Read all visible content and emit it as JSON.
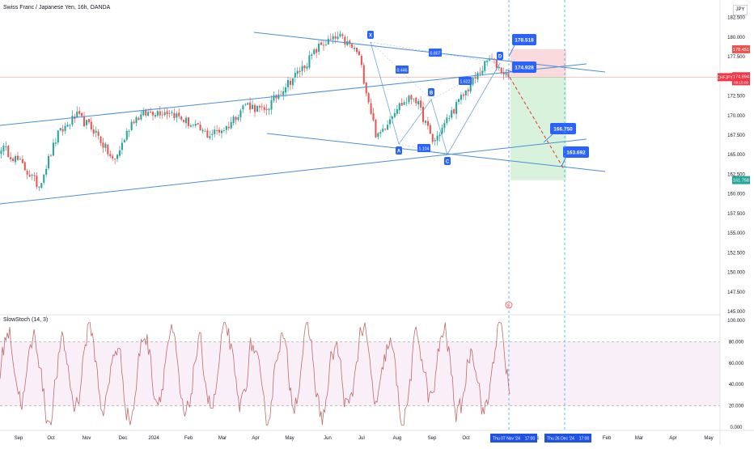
{
  "header": {
    "title": "Swiss Franc / Japanese Yen, 16h, OANDA",
    "currency": "JPY"
  },
  "colors": {
    "up": "#26a69a",
    "down": "#ef5350",
    "trendline": "#2962ff",
    "channel": "#4a8fd8",
    "label_bg": "#2962ff",
    "stoch": "#c26a6a",
    "stoch_band": "#f3e5f5",
    "target_zone": "#d1f0d6",
    "stop_zone": "#f9cdd2",
    "price_line": "#f44336"
  },
  "chart_data": [
    {
      "type": "candlestick",
      "title": "Swiss Franc / Japanese Yen, 16h, OANDA",
      "ylim": [
        145.0,
        183.5
      ],
      "y_ticks": [
        "182.500",
        "180.000",
        "177.500",
        "175.000",
        "172.500",
        "170.000",
        "167.500",
        "165.000",
        "162.500",
        "160.000",
        "157.500",
        "155.000",
        "152.500",
        "150.000",
        "147.500",
        "145.000"
      ],
      "x_ticks": [
        "Sep",
        "Oct",
        "Nov",
        "Dec",
        "2024",
        "Feb",
        "Mar",
        "Apr",
        "May",
        "Jun",
        "Jul",
        "Aug",
        "Sep",
        "Oct",
        "Dec",
        "Feb",
        "Mar",
        "Apr",
        "May"
      ],
      "close_path": [
        [
          "Sep",
          166.0
        ],
        [
          "Oct",
          164.0
        ],
        [
          "Oct",
          161.0
        ],
        [
          "Nov",
          167.5
        ],
        [
          "Nov",
          170.0
        ],
        [
          "Dec",
          168.0
        ],
        [
          "Dec",
          164.0
        ],
        [
          "2024",
          169.5
        ],
        [
          "Feb",
          170.5
        ],
        [
          "Feb",
          170.5
        ],
        [
          "Mar",
          169.0
        ],
        [
          "Apr",
          167.5
        ],
        [
          "Apr",
          168.5
        ],
        [
          "May",
          171.5
        ],
        [
          "May",
          170.5
        ],
        [
          "Jun",
          173.5
        ],
        [
          "Jun",
          176.0
        ],
        [
          "Jul",
          179.0
        ],
        [
          "Jul",
          180.0
        ],
        [
          "Jul",
          178.0
        ],
        [
          "Aug",
          167.0
        ],
        [
          "Aug",
          171.0
        ],
        [
          "Sep",
          172.5
        ],
        [
          "Sep",
          166.5
        ],
        [
          "Oct",
          170.5
        ],
        [
          "Oct",
          174.0
        ],
        [
          "Oct",
          177.3
        ],
        [
          "Oct",
          174.894
        ]
      ],
      "price_labels": {
        "last": "174.894",
        "last_time": "09:15:09",
        "symbol": "CHFJPY",
        "stop": "178.451",
        "entry": "174.994",
        "target": "161.758"
      },
      "pattern_points": [
        {
          "label": "X",
          "value": 180.0
        },
        {
          "label": "A",
          "value": 166.5
        },
        {
          "label": "B",
          "value": 173.0
        },
        {
          "label": "C",
          "value": 165.0
        },
        {
          "label": "D",
          "value": 177.5
        }
      ],
      "pattern_ratios": [
        "0.807",
        "0.446",
        "1.104",
        "1.622"
      ],
      "projection_labels": [
        "178.518",
        "174.928",
        "166.750",
        "163.692"
      ],
      "event_marker": "E"
    },
    {
      "type": "line",
      "title": "SlowStoch (14, 3)",
      "ylim": [
        0,
        100
      ],
      "y_ticks": [
        "100.000",
        "80.000",
        "60.000",
        "40.000",
        "20.000",
        "0.000"
      ],
      "bands": [
        20,
        80
      ]
    }
  ],
  "x_highlights": [
    "Thu 07 Nov '24",
    "17:00",
    "Thu 26 Dec '24",
    "17:00"
  ]
}
